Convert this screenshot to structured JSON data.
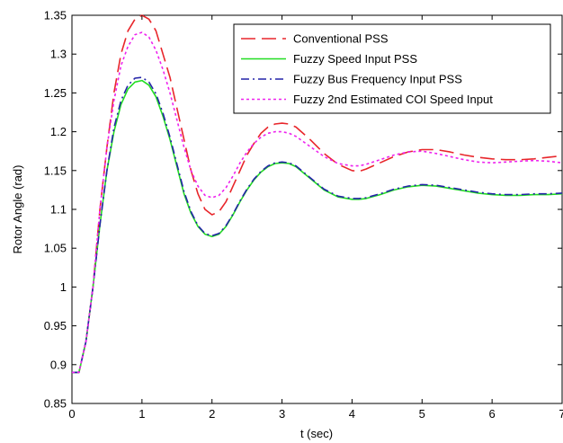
{
  "chart_data": {
    "type": "line",
    "title": "",
    "xlabel": "t (sec)",
    "ylabel": "Rotor Angle (rad)",
    "xlim": [
      0,
      7
    ],
    "ylim": [
      0.85,
      1.35
    ],
    "xticks": [
      0,
      1,
      2,
      3,
      4,
      5,
      6,
      7
    ],
    "yticks": [
      0.85,
      0.9,
      0.95,
      1,
      1.05,
      1.1,
      1.15,
      1.2,
      1.25,
      1.3,
      1.35
    ],
    "xtick_labels": [
      "0",
      "1",
      "2",
      "3",
      "4",
      "5",
      "6",
      "7"
    ],
    "ytick_labels": [
      "0.85",
      "0.9",
      "0.95",
      "1",
      "1.05",
      "1.1",
      "1.15",
      "1.2",
      "1.25",
      "1.3",
      "1.35"
    ],
    "grid": false,
    "legend_position": "top-right",
    "series": [
      {
        "name": "Conventional PSS",
        "color": "#e8262b",
        "dash": "long-dash",
        "x": [
          0,
          0.1,
          0.2,
          0.3,
          0.4,
          0.5,
          0.6,
          0.7,
          0.8,
          0.9,
          1.0,
          1.1,
          1.2,
          1.3,
          1.4,
          1.5,
          1.6,
          1.7,
          1.8,
          1.9,
          2.0,
          2.1,
          2.2,
          2.3,
          2.4,
          2.5,
          2.6,
          2.7,
          2.8,
          2.9,
          3.0,
          3.1,
          3.2,
          3.4,
          3.6,
          3.8,
          4.0,
          4.1,
          4.2,
          4.4,
          4.6,
          4.8,
          5.0,
          5.2,
          5.4,
          5.6,
          5.8,
          6.0,
          6.2,
          6.4,
          6.6,
          6.8,
          7.0
        ],
        "y": [
          0.89,
          0.89,
          0.93,
          1.0,
          1.1,
          1.18,
          1.25,
          1.3,
          1.33,
          1.345,
          1.35,
          1.345,
          1.33,
          1.3,
          1.27,
          1.23,
          1.19,
          1.15,
          1.12,
          1.1,
          1.093,
          1.097,
          1.11,
          1.13,
          1.15,
          1.17,
          1.185,
          1.198,
          1.206,
          1.21,
          1.211,
          1.21,
          1.206,
          1.19,
          1.172,
          1.158,
          1.15,
          1.149,
          1.152,
          1.16,
          1.168,
          1.174,
          1.177,
          1.177,
          1.174,
          1.17,
          1.167,
          1.165,
          1.164,
          1.164,
          1.165,
          1.167,
          1.169
        ]
      },
      {
        "name": "Fuzzy Speed Input PSS",
        "color": "#22dd22",
        "dash": "solid",
        "x": [
          0,
          0.1,
          0.2,
          0.3,
          0.4,
          0.5,
          0.6,
          0.7,
          0.8,
          0.9,
          1.0,
          1.1,
          1.2,
          1.3,
          1.4,
          1.5,
          1.6,
          1.7,
          1.8,
          1.9,
          2.0,
          2.1,
          2.2,
          2.3,
          2.4,
          2.5,
          2.6,
          2.7,
          2.8,
          2.9,
          3.0,
          3.1,
          3.2,
          3.4,
          3.6,
          3.8,
          4.0,
          4.1,
          4.2,
          4.4,
          4.6,
          4.8,
          5.0,
          5.2,
          5.4,
          5.6,
          5.8,
          6.0,
          6.2,
          6.4,
          6.6,
          6.8,
          7.0
        ],
        "y": [
          0.89,
          0.89,
          0.93,
          1.0,
          1.08,
          1.15,
          1.2,
          1.235,
          1.255,
          1.264,
          1.266,
          1.26,
          1.245,
          1.22,
          1.19,
          1.155,
          1.12,
          1.095,
          1.078,
          1.068,
          1.065,
          1.068,
          1.078,
          1.093,
          1.11,
          1.125,
          1.138,
          1.148,
          1.155,
          1.159,
          1.16,
          1.159,
          1.155,
          1.14,
          1.125,
          1.116,
          1.113,
          1.113,
          1.114,
          1.119,
          1.125,
          1.129,
          1.131,
          1.13,
          1.127,
          1.124,
          1.121,
          1.119,
          1.118,
          1.118,
          1.119,
          1.119,
          1.12
        ]
      },
      {
        "name": "Fuzzy Bus Frequency Input PSS",
        "color": "#2424a8",
        "dash": "dash-dot",
        "x": [
          0,
          0.1,
          0.2,
          0.3,
          0.4,
          0.5,
          0.6,
          0.7,
          0.8,
          0.9,
          1.0,
          1.1,
          1.2,
          1.3,
          1.4,
          1.5,
          1.6,
          1.7,
          1.8,
          1.9,
          2.0,
          2.1,
          2.2,
          2.3,
          2.4,
          2.5,
          2.6,
          2.7,
          2.8,
          2.9,
          3.0,
          3.1,
          3.2,
          3.4,
          3.6,
          3.8,
          4.0,
          4.1,
          4.2,
          4.4,
          4.6,
          4.8,
          5.0,
          5.2,
          5.4,
          5.6,
          5.8,
          6.0,
          6.2,
          6.4,
          6.6,
          6.8,
          7.0
        ],
        "y": [
          0.89,
          0.89,
          0.93,
          1.0,
          1.08,
          1.15,
          1.205,
          1.24,
          1.26,
          1.269,
          1.27,
          1.264,
          1.249,
          1.224,
          1.193,
          1.158,
          1.123,
          1.097,
          1.079,
          1.069,
          1.066,
          1.069,
          1.079,
          1.094,
          1.111,
          1.126,
          1.139,
          1.149,
          1.156,
          1.16,
          1.161,
          1.16,
          1.156,
          1.141,
          1.126,
          1.117,
          1.114,
          1.114,
          1.115,
          1.12,
          1.126,
          1.13,
          1.132,
          1.131,
          1.128,
          1.125,
          1.122,
          1.12,
          1.119,
          1.119,
          1.12,
          1.12,
          1.121
        ]
      },
      {
        "name": "Fuzzy 2nd Estimated COI Speed Input",
        "color": "#ee22ee",
        "dash": "dotted",
        "x": [
          0,
          0.1,
          0.2,
          0.3,
          0.4,
          0.5,
          0.6,
          0.7,
          0.8,
          0.9,
          1.0,
          1.1,
          1.2,
          1.3,
          1.4,
          1.5,
          1.6,
          1.7,
          1.8,
          1.9,
          2.0,
          2.1,
          2.2,
          2.3,
          2.4,
          2.5,
          2.6,
          2.7,
          2.8,
          2.9,
          3.0,
          3.1,
          3.2,
          3.4,
          3.6,
          3.8,
          4.0,
          4.1,
          4.2,
          4.4,
          4.6,
          4.8,
          5.0,
          5.2,
          5.4,
          5.6,
          5.8,
          6.0,
          6.2,
          6.4,
          6.6,
          6.8,
          7.0
        ],
        "y": [
          0.89,
          0.89,
          0.93,
          1.0,
          1.1,
          1.18,
          1.24,
          1.285,
          1.31,
          1.325,
          1.328,
          1.322,
          1.305,
          1.28,
          1.25,
          1.215,
          1.18,
          1.15,
          1.13,
          1.118,
          1.115,
          1.118,
          1.128,
          1.143,
          1.16,
          1.174,
          1.185,
          1.193,
          1.198,
          1.2,
          1.2,
          1.198,
          1.194,
          1.181,
          1.168,
          1.159,
          1.156,
          1.156,
          1.158,
          1.164,
          1.17,
          1.174,
          1.175,
          1.172,
          1.168,
          1.164,
          1.161,
          1.16,
          1.161,
          1.162,
          1.163,
          1.162,
          1.16
        ]
      }
    ]
  }
}
